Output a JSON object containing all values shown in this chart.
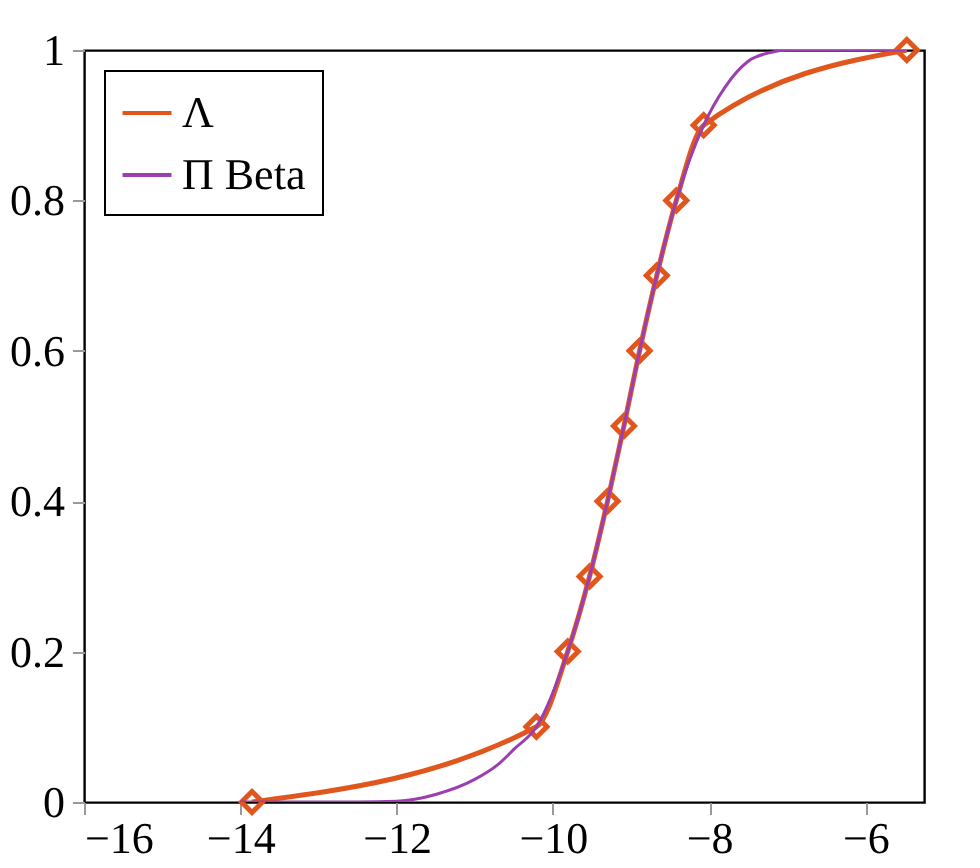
{
  "chart_data": {
    "type": "line",
    "xlim": [
      -16,
      -5.25
    ],
    "ylim": [
      0,
      1
    ],
    "xticks": [
      {
        "value": -16,
        "label": "−16"
      },
      {
        "value": -14,
        "label": "−14"
      },
      {
        "value": -12,
        "label": "−12"
      },
      {
        "value": -10,
        "label": "−10"
      },
      {
        "value": -8,
        "label": "−8"
      },
      {
        "value": -6,
        "label": "−6"
      }
    ],
    "yticks": [
      0,
      0.2,
      0.4,
      0.6,
      0.8,
      1
    ],
    "grid": false,
    "legend": "top left",
    "line_style": "solid",
    "series": [
      {
        "name": "Λ",
        "color": "#e0561c",
        "marker": "diamond",
        "x": [
          -13.85,
          -10.21,
          -9.81,
          -9.53,
          -9.3,
          -9.09,
          -8.89,
          -8.67,
          -8.42,
          -8.07,
          -5.47
        ],
        "values": [
          0,
          0.1,
          0.2,
          0.3,
          0.4,
          0.5,
          0.6,
          0.7,
          0.8,
          0.9,
          1
        ]
      },
      {
        "name": "Π Beta",
        "color": "#9b3fb0",
        "marker": "none",
        "x": [
          -14,
          -12.5,
          -12,
          -11.5,
          -11,
          -10.7,
          -10.5,
          -10.21,
          -9.81,
          -9.53,
          -9.3,
          -9.09,
          -8.89,
          -8.67,
          -8.42,
          -8.07,
          -7.8,
          -7.5,
          -7.2,
          -7,
          -6.5,
          -5.47
        ],
        "values": [
          0,
          0,
          0.001,
          0.01,
          0.03,
          0.05,
          0.07,
          0.1,
          0.2,
          0.3,
          0.4,
          0.5,
          0.6,
          0.7,
          0.8,
          0.9,
          0.95,
          0.985,
          0.997,
          1,
          1,
          1
        ]
      }
    ]
  }
}
